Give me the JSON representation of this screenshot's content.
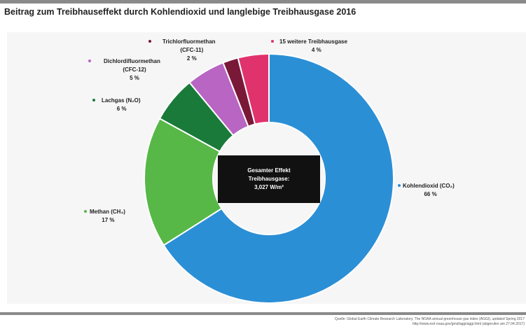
{
  "title": "Beitrag zum Treibhauseffekt durch Kohlendioxid und langlebige Treibhausgase 2016",
  "center_box": {
    "line1": "Gesamter Effekt",
    "line2": "Treibhausgase:",
    "line3": "3,027 W/m²"
  },
  "source": {
    "line1": "Quelle: Global Earth Climate Research Laboratory, The NOAA annual greenhouse gas index (AGGI), updated Spring 2017",
    "line2": "http://www.esrl.noaa.gov/gmd/aggi/aggi.html (abgerufen am 27.04.2017)"
  },
  "chart_data": {
    "type": "pie",
    "donut": true,
    "start": "top, clockwise",
    "slices": [
      {
        "name": "Kohlendioxid (CO₂)",
        "label_lines": [
          "Kohlendioxid (CO₂)",
          "66 %"
        ],
        "value": 66,
        "color": "#2b8fd6"
      },
      {
        "name": "Methan (CH₄)",
        "label_lines": [
          "Methan (CH₄)",
          "17 %"
        ],
        "value": 17,
        "color": "#57b847"
      },
      {
        "name": "Lachgas (N₂O)",
        "label_lines": [
          "Lachgas (N₂O)",
          "6 %"
        ],
        "value": 6,
        "color": "#1a7a3a"
      },
      {
        "name": "Dichlordifluormethan (CFC-12)",
        "label_lines": [
          "Dichlordifluormethan",
          "(CFC-12)",
          "5 %"
        ],
        "value": 5,
        "color": "#b865c3"
      },
      {
        "name": "Trichlorfluormethan (CFC-11)",
        "label_lines": [
          "Trichlorfluormethan",
          "(CFC-11)",
          "2 %"
        ],
        "value": 2,
        "color": "#7a1838"
      },
      {
        "name": "15 weitere Treibhausgase",
        "label_lines": [
          "15 weitere Treibhausgase",
          "4 %"
        ],
        "value": 4,
        "color": "#e0336d"
      }
    ]
  }
}
